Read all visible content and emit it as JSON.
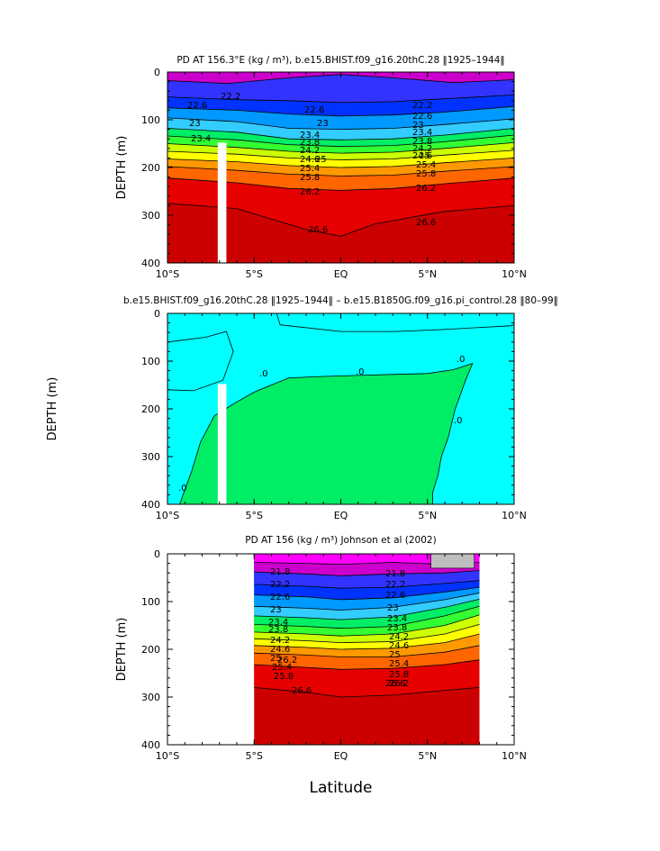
{
  "panels": [
    {
      "title": "PD AT 156.3°E (kg / m³), b.e15.BHIST.f09_g16.20thC.28 ‖1925–1944‖",
      "ylabel": "DEPTH (m)",
      "contour_labels": [
        "22.2",
        "22.6",
        "23",
        "23.4",
        "22.6",
        "23",
        "23.4",
        "23.8",
        "24.2",
        "24.6",
        "25",
        "25.4",
        "25.8",
        "26.2",
        "26.6",
        "22.2",
        "22.6",
        "23",
        "23.4",
        "23.8",
        "24.2",
        "24.6",
        "25",
        "25.4",
        "25.8",
        "26.2",
        "26.6"
      ]
    },
    {
      "title": "b.e15.BHIST.f09_g16.20thC.28 ‖1925–1944‖ – b.e15.B1850G.f09_g16.pi_control.28 ‖80–99‖",
      "ylabel": "DEPTH (m)",
      "contour_labels": [
        ".0",
        ".0",
        ".0",
        ".0",
        ".0"
      ]
    },
    {
      "title": "PD AT 156 (kg / m³) Johnson et al (2002)",
      "ylabel": "DEPTH (m)",
      "xlabel": "Latitude",
      "contour_labels": [
        "21.8",
        "22.2",
        "22.6",
        "23",
        "23.4",
        "23.8",
        "24.2",
        "24.6",
        "25",
        "25.4",
        "25.8",
        "26.2",
        "26.6",
        "21.8",
        "22.2",
        "22.6",
        "23",
        "23.4",
        "23.8",
        "24.2",
        "24.6",
        "25",
        "25.4",
        "25.8",
        "26.2",
        "26.6"
      ]
    }
  ],
  "chart_data": [
    {
      "type": "heatmap",
      "title": "PD AT 156.3°E (kg / m³), b.e15.BHIST.f09_g16.20thC.28 ‖1925–1944‖",
      "ylabel": "DEPTH (m)",
      "x_ticks": [
        "10°S",
        "5°S",
        "EQ",
        "5°N",
        "10°N"
      ],
      "y_ticks": [
        0,
        100,
        200,
        300,
        400
      ],
      "xlim": [
        -10,
        10
      ],
      "ylim": [
        400,
        0
      ],
      "contour_levels": [
        22.2,
        22.6,
        23,
        23.4,
        23.8,
        24.2,
        24.6,
        25,
        25.4,
        25.8,
        26.2,
        26.6
      ],
      "isopycnal_depths": [
        {
          "level": 22.2,
          "lat": [
            -10,
            -6.5,
            -3,
            0,
            3,
            6.5,
            10
          ],
          "depth": [
            18,
            24,
            12,
            5,
            12,
            22,
            16
          ]
        },
        {
          "level": 22.6,
          "lat": [
            -10,
            -6,
            -3,
            0,
            3,
            6,
            10
          ],
          "depth": [
            52,
            58,
            60,
            64,
            62,
            56,
            48
          ]
        },
        {
          "level": 23.0,
          "lat": [
            -10,
            -6,
            -3,
            0,
            3,
            6,
            10
          ],
          "depth": [
            75,
            80,
            88,
            92,
            90,
            84,
            72
          ]
        },
        {
          "level": 23.4,
          "lat": [
            -10,
            -6,
            -3,
            0,
            3,
            6,
            10
          ],
          "depth": [
            96,
            104,
            118,
            120,
            118,
            110,
            98
          ]
        },
        {
          "level": 23.8,
          "lat": [
            -10,
            -6,
            -3,
            0,
            3,
            6,
            10
          ],
          "depth": [
            118,
            126,
            140,
            142,
            140,
            132,
            118
          ]
        },
        {
          "level": 24.2,
          "lat": [
            -10,
            -6,
            -3,
            0,
            3,
            6,
            10
          ],
          "depth": [
            134,
            142,
            152,
            156,
            154,
            146,
            132
          ]
        },
        {
          "level": 24.6,
          "lat": [
            -10,
            -6,
            -3,
            0,
            3,
            6,
            10
          ],
          "depth": [
            150,
            158,
            166,
            170,
            168,
            160,
            148
          ]
        },
        {
          "level": 25.0,
          "lat": [
            -10,
            -6,
            -3,
            0,
            3,
            6,
            10
          ],
          "depth": [
            166,
            172,
            180,
            184,
            182,
            174,
            164
          ]
        },
        {
          "level": 25.4,
          "lat": [
            -10,
            -6,
            -3,
            0,
            3,
            6,
            10
          ],
          "depth": [
            182,
            188,
            196,
            200,
            198,
            190,
            180
          ]
        },
        {
          "level": 25.8,
          "lat": [
            -10,
            -6,
            -3,
            0,
            3,
            6,
            10
          ],
          "depth": [
            198,
            206,
            214,
            218,
            216,
            208,
            198
          ]
        },
        {
          "level": 26.2,
          "lat": [
            -10,
            -6,
            -3,
            0,
            3,
            6,
            10
          ],
          "depth": [
            222,
            232,
            244,
            248,
            244,
            234,
            222
          ]
        },
        {
          "level": 26.6,
          "lat": [
            -10,
            -6,
            -2,
            0,
            2,
            6,
            10
          ],
          "depth": [
            275,
            286,
            330,
            344,
            318,
            292,
            280
          ]
        }
      ],
      "masked": [
        {
          "lat": [
            -7.1,
            -6.6
          ],
          "depth": [
            148,
            400
          ]
        }
      ],
      "colormap": [
        "#cc00cc",
        "#9900ff",
        "#3333ff",
        "#0033ff",
        "#0066ff",
        "#0099ff",
        "#33ccff",
        "#00ffcc",
        "#00ee66",
        "#33ff33",
        "#99ff33",
        "#ccff00",
        "#ffff00",
        "#ffcc00",
        "#ff9900",
        "#ff6600",
        "#ff3300",
        "#e60000",
        "#cc0000"
      ]
    },
    {
      "type": "heatmap",
      "title": "b.e15.BHIST.f09_g16.20thC.28 ‖1925–1944‖ – b.e15.B1850G.f09_g16.pi_control.28 ‖80–99‖",
      "ylabel": "DEPTH (m)",
      "x_ticks": [
        "10°S",
        "5°S",
        "EQ",
        "5°N",
        "10°N"
      ],
      "y_ticks": [
        0,
        100,
        200,
        300,
        400
      ],
      "xlim": [
        -10,
        10
      ],
      "ylim": [
        400,
        0
      ],
      "contour_levels": [
        0
      ],
      "zero_contour": {
        "lat": [
          -9.3,
          -8.6,
          -8.1,
          -7.3,
          -6.2,
          -5,
          -3,
          -1,
          1,
          3,
          5,
          6.5,
          7.6,
          7.2,
          6.6,
          6.2,
          5.8,
          5.6,
          5.3,
          5.3
        ],
        "depth": [
          400,
          330,
          270,
          215,
          190,
          165,
          135,
          132,
          130,
          128,
          126,
          118,
          105,
          140,
          200,
          260,
          300,
          340,
          375,
          400
        ]
      },
      "cap_contours": [
        {
          "lat": [
            -10,
            -8.5,
            -6.8,
            -6.2,
            -6.6,
            -7.8,
            -10
          ],
          "depth": [
            160,
            162,
            140,
            80,
            38,
            50,
            60
          ]
        },
        {
          "lat": [
            -3.7,
            -3.5,
            0,
            3.2,
            5.8,
            7.8,
            9.8,
            10
          ],
          "depth": [
            0,
            24,
            38,
            38,
            34,
            30,
            26,
            24
          ]
        }
      ],
      "masked": [
        {
          "lat": [
            -7.1,
            -6.6
          ],
          "depth": [
            148,
            400
          ]
        }
      ],
      "colors": {
        "positive": "#00ee66",
        "negative": "#00ffff"
      }
    },
    {
      "type": "heatmap",
      "title": "PD AT 156 (kg / m³) Johnson et al (2002)",
      "xlabel": "Latitude",
      "ylabel": "DEPTH (m)",
      "x_ticks": [
        "10°S",
        "5°S",
        "EQ",
        "5°N",
        "10°N"
      ],
      "y_ticks": [
        0,
        100,
        200,
        300,
        400
      ],
      "xlim": [
        -10,
        10
      ],
      "ylim": [
        400,
        0
      ],
      "data_extent_lat": [
        -5,
        8
      ],
      "contour_levels": [
        21.8,
        22.2,
        22.6,
        23,
        23.4,
        23.8,
        24.2,
        24.6,
        25,
        25.4,
        25.8,
        26.2,
        26.6
      ],
      "isopycnal_depths": [
        {
          "level": 21.8,
          "lat": [
            -5,
            -2,
            0,
            3,
            6,
            8
          ],
          "depth": [
            18,
            20,
            22,
            18,
            22,
            18
          ]
        },
        {
          "level": 22.2,
          "lat": [
            -5,
            -2,
            0,
            3,
            6,
            8
          ],
          "depth": [
            38,
            42,
            46,
            42,
            40,
            35
          ]
        },
        {
          "level": 22.6,
          "lat": [
            -5,
            -2,
            0,
            3,
            6,
            8
          ],
          "depth": [
            64,
            68,
            72,
            70,
            62,
            56
          ]
        },
        {
          "level": 23.0,
          "lat": [
            -5,
            -2,
            0,
            3,
            6,
            8
          ],
          "depth": [
            86,
            90,
            96,
            92,
            80,
            70
          ]
        },
        {
          "level": 23.4,
          "lat": [
            -5,
            -2,
            0,
            3,
            6,
            8
          ],
          "depth": [
            110,
            114,
            118,
            112,
            96,
            82
          ]
        },
        {
          "level": 23.8,
          "lat": [
            -5,
            -2,
            0,
            3,
            6,
            8
          ],
          "depth": [
            130,
            134,
            138,
            132,
            112,
            95
          ]
        },
        {
          "level": 24.2,
          "lat": [
            -5,
            -2,
            0,
            3,
            6,
            8
          ],
          "depth": [
            148,
            152,
            156,
            152,
            130,
            110
          ]
        },
        {
          "level": 24.6,
          "lat": [
            -5,
            -2,
            0,
            3,
            6,
            8
          ],
          "depth": [
            164,
            168,
            172,
            168,
            150,
            128
          ]
        },
        {
          "level": 25.0,
          "lat": [
            -5,
            -2,
            0,
            3,
            6,
            8
          ],
          "depth": [
            178,
            182,
            186,
            184,
            168,
            148
          ]
        },
        {
          "level": 25.4,
          "lat": [
            -5,
            -2,
            0,
            3,
            6,
            8
          ],
          "depth": [
            192,
            196,
            200,
            198,
            186,
            168
          ]
        },
        {
          "level": 25.8,
          "lat": [
            -5,
            -2,
            0,
            3,
            6,
            8
          ],
          "depth": [
            208,
            212,
            216,
            216,
            206,
            192
          ]
        },
        {
          "level": 26.2,
          "lat": [
            -5,
            -2,
            0,
            3,
            6,
            8
          ],
          "depth": [
            232,
            238,
            242,
            240,
            232,
            222
          ]
        },
        {
          "level": 26.6,
          "lat": [
            -5,
            -2,
            0,
            3,
            6,
            8
          ],
          "depth": [
            280,
            290,
            300,
            296,
            286,
            280
          ]
        }
      ],
      "gray_area": [
        {
          "lat": [
            5.2,
            7.7
          ],
          "depth": [
            0,
            30
          ]
        }
      ],
      "colormap": [
        "#ff00ff",
        "#cc00cc",
        "#9900ff",
        "#3333ff",
        "#0033ff",
        "#0066ff",
        "#0099ff",
        "#33ccff",
        "#00ffcc",
        "#00ee66",
        "#33ff33",
        "#99ff33",
        "#ccff00",
        "#ffff00",
        "#ffcc00",
        "#ff9900",
        "#ff6600",
        "#ff3300",
        "#e60000",
        "#cc0000"
      ]
    }
  ]
}
